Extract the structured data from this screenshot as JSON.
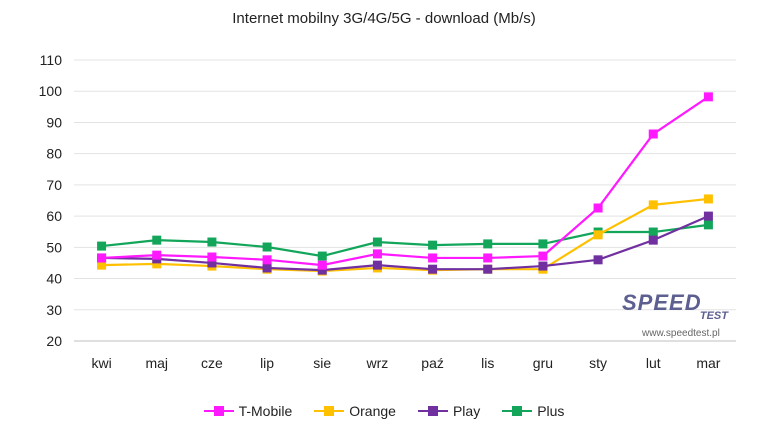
{
  "chart_data": {
    "type": "line",
    "title": "Internet mobilny 3G/4G/5G - download (Mb/s)",
    "categories": [
      "kwi",
      "maj",
      "cze",
      "lip",
      "sie",
      "wrz",
      "paź",
      "lis",
      "gru",
      "sty",
      "lut",
      "mar"
    ],
    "ylim": [
      20,
      110
    ],
    "yticks": [
      20,
      30,
      40,
      50,
      60,
      70,
      80,
      90,
      100,
      110
    ],
    "grid": true,
    "legend_position": "bottom",
    "series": [
      {
        "name": "T-Mobile",
        "color": "#ff19ff",
        "values": [
          46.6,
          47.5,
          46.9,
          46.0,
          44.3,
          47.9,
          46.6,
          46.6,
          47.2,
          62.6,
          86.3,
          98.2
        ]
      },
      {
        "name": "Orange",
        "color": "#ffc000",
        "values": [
          44.3,
          44.7,
          44.0,
          43.0,
          42.4,
          43.4,
          42.7,
          43.0,
          43.0,
          54.0,
          63.6,
          65.5
        ]
      },
      {
        "name": "Play",
        "color": "#7030a0",
        "values": [
          46.6,
          46.3,
          45.0,
          43.4,
          42.7,
          44.3,
          43.0,
          43.0,
          44.0,
          46.0,
          52.3,
          60.0
        ]
      },
      {
        "name": "Plus",
        "color": "#13a65a",
        "values": [
          50.4,
          52.3,
          51.7,
          50.1,
          47.2,
          51.7,
          50.7,
          51.1,
          51.1,
          54.9,
          54.9,
          57.2
        ]
      }
    ]
  },
  "watermark": {
    "brand": "SPEED",
    "sub": "TEST",
    "url": "www.speedtest.pl"
  }
}
